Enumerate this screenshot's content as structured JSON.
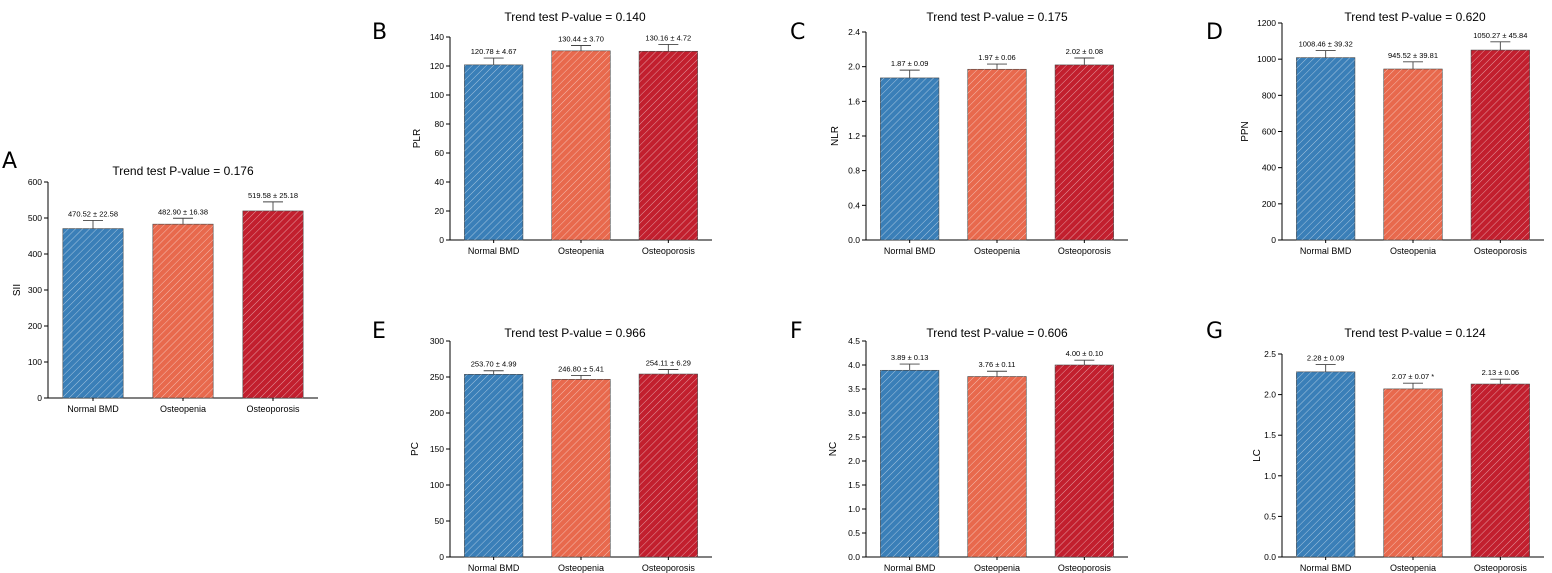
{
  "colors": {
    "normal_bmd": "#3a7fb8",
    "osteopenia": "#e8694d",
    "osteoporosis": "#c21f2e"
  },
  "chart_data": [
    {
      "panel": "A",
      "type": "bar",
      "title": "Trend test P-value = 0.176",
      "ylabel": "SII",
      "categories": [
        "Normal BMD",
        "Osteopenia",
        "Osteoporosis"
      ],
      "values": [
        470.52,
        482.9,
        519.58
      ],
      "errors": [
        22.58,
        16.38,
        25.18
      ],
      "labels": [
        "470.52 ± 22.58",
        "482.90 ± 16.38",
        "519.58 ± 25.18"
      ],
      "ylim": [
        0,
        600
      ],
      "yticks": [
        0,
        100,
        200,
        300,
        400,
        500,
        600
      ],
      "ytick_labels": [
        "0",
        "100",
        "200",
        "300",
        "400",
        "500",
        "600"
      ]
    },
    {
      "panel": "B",
      "type": "bar",
      "title": "Trend test P-value = 0.140",
      "ylabel": "PLR",
      "categories": [
        "Normal BMD",
        "Osteopenia",
        "Osteoporosis"
      ],
      "values": [
        120.78,
        130.44,
        130.16
      ],
      "errors": [
        4.67,
        3.7,
        4.72
      ],
      "labels": [
        "120.78 ± 4.67",
        "130.44 ± 3.70",
        "130.16 ± 4.72"
      ],
      "ylim": [
        0,
        140
      ],
      "yticks": [
        0,
        20,
        40,
        60,
        80,
        100,
        120,
        140
      ],
      "ytick_labels": [
        "0",
        "20",
        "40",
        "60",
        "80",
        "100",
        "120",
        "140"
      ]
    },
    {
      "panel": "C",
      "type": "bar",
      "title": "Trend test P-value = 0.175",
      "ylabel": "NLR",
      "categories": [
        "Normal BMD",
        "Osteopenia",
        "Osteoporosis"
      ],
      "values": [
        1.87,
        1.97,
        2.02
      ],
      "errors": [
        0.09,
        0.06,
        0.08
      ],
      "labels": [
        "1.87 ± 0.09",
        "1.97 ± 0.06",
        "2.02 ± 0.08"
      ],
      "ylim": [
        0,
        2.4
      ],
      "yticks": [
        0,
        0.4,
        0.8,
        1.2,
        1.6,
        2.0,
        2.4
      ],
      "ytick_labels": [
        "0.0",
        "0.4",
        "0.8",
        "1.2",
        "1.6",
        "2.0",
        "2.4"
      ]
    },
    {
      "panel": "D",
      "type": "bar",
      "title": "Trend test P-value = 0.620",
      "ylabel": "PPN",
      "categories": [
        "Normal BMD",
        "Osteopenia",
        "Osteoporosis"
      ],
      "values": [
        1008.46,
        945.52,
        1050.27
      ],
      "errors": [
        39.32,
        39.81,
        45.84
      ],
      "labels": [
        "1008.46 ± 39.32",
        "945.52 ± 39.81",
        "1050.27 ± 45.84"
      ],
      "ylim": [
        0,
        1200
      ],
      "yticks": [
        0,
        200,
        400,
        600,
        800,
        1000,
        1200
      ],
      "ytick_labels": [
        "0",
        "200",
        "400",
        "600",
        "800",
        "1000",
        "1200"
      ]
    },
    {
      "panel": "E",
      "type": "bar",
      "title": "Trend test P-value = 0.966",
      "ylabel": "PC",
      "categories": [
        "Normal BMD",
        "Osteopenia",
        "Osteoporosis"
      ],
      "values": [
        253.7,
        246.8,
        254.11
      ],
      "errors": [
        4.99,
        5.41,
        6.29
      ],
      "labels": [
        "253.70 ± 4.99",
        "246.80 ± 5.41",
        "254.11 ± 6.29"
      ],
      "ylim": [
        0,
        300
      ],
      "yticks": [
        0,
        50,
        100,
        150,
        200,
        250,
        300
      ],
      "ytick_labels": [
        "0",
        "50",
        "100",
        "150",
        "200",
        "250",
        "300"
      ]
    },
    {
      "panel": "F",
      "type": "bar",
      "title": "Trend test P-value = 0.606",
      "ylabel": "NC",
      "categories": [
        "Normal BMD",
        "Osteopenia",
        "Osteoporosis"
      ],
      "values": [
        3.89,
        3.76,
        4.0
      ],
      "errors": [
        0.13,
        0.11,
        0.1
      ],
      "labels": [
        "3.89 ± 0.13",
        "3.76 ± 0.11",
        "4.00 ± 0.10"
      ],
      "ylim": [
        0,
        4.5
      ],
      "yticks": [
        0,
        0.5,
        1.0,
        1.5,
        2.0,
        2.5,
        3.0,
        3.5,
        4.0,
        4.5
      ],
      "ytick_labels": [
        "0.0",
        "0.5",
        "1.0",
        "1.5",
        "2.0",
        "2.5",
        "3.0",
        "3.5",
        "4.0",
        "4.5"
      ]
    },
    {
      "panel": "G",
      "type": "bar",
      "title": "Trend test P-value = 0.124",
      "ylabel": "LC",
      "categories": [
        "Normal BMD",
        "Osteopenia",
        "Osteoporosis"
      ],
      "values": [
        2.28,
        2.07,
        2.13
      ],
      "errors": [
        0.09,
        0.07,
        0.06
      ],
      "labels": [
        "2.28 ± 0.09",
        "2.07 ± 0.07 *",
        "2.13 ± 0.06"
      ],
      "ylim": [
        0,
        2.5
      ],
      "yticks": [
        0,
        0.5,
        1.0,
        1.5,
        2.0,
        2.5
      ],
      "ytick_labels": [
        "0.0",
        "0.5",
        "1.0",
        "1.5",
        "2.0",
        "2.5"
      ]
    }
  ]
}
